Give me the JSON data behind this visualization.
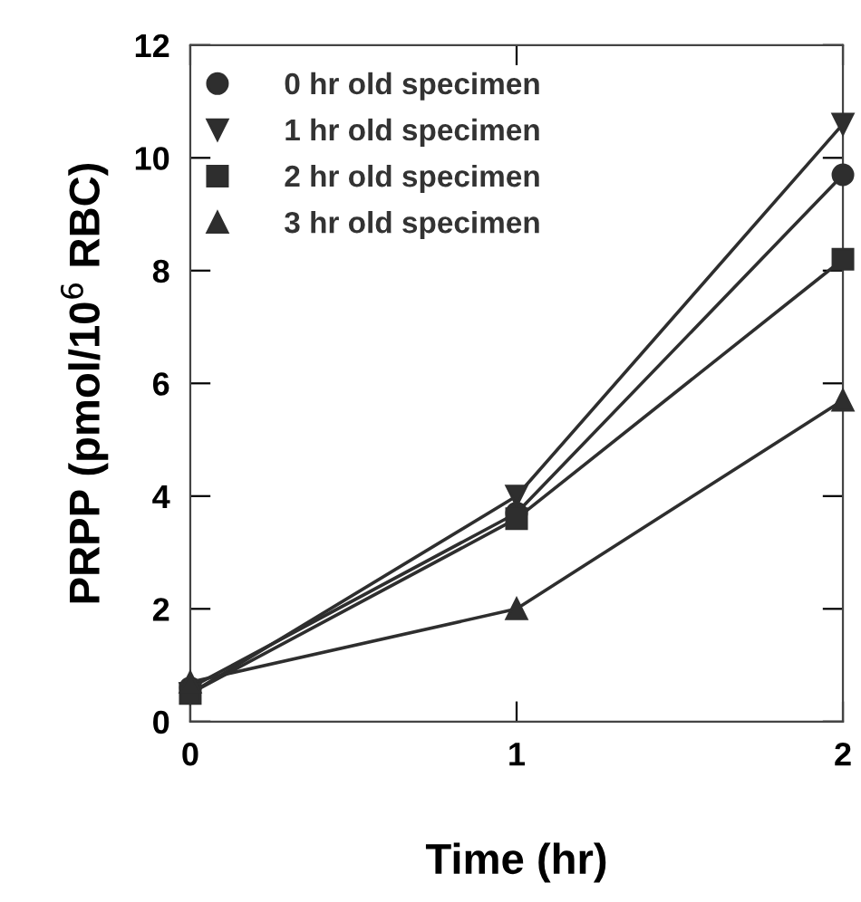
{
  "chart_data": {
    "type": "line",
    "xlabel": "Time (hr)",
    "ylabel": "PRPP (pmol/10$^{6}$ RBC)",
    "x": [
      0,
      1,
      2
    ],
    "xlim": [
      0,
      2
    ],
    "xticks": [
      0,
      1,
      2
    ],
    "ylim": [
      0,
      12
    ],
    "yticks": [
      0,
      2,
      4,
      6,
      8,
      10,
      12
    ],
    "grid": false,
    "legend": "top left",
    "series": [
      {
        "name": "0 hr old specimen",
        "color": "#2e2e2e",
        "marker": "circle",
        "values": [
          0.6,
          3.7,
          9.7
        ]
      },
      {
        "name": "1 hr old specimen",
        "color": "#2e2e2e",
        "marker": "triangle_down",
        "values": [
          0.5,
          4.0,
          10.6
        ]
      },
      {
        "name": "2 hr old specimen",
        "color": "#2e2e2e",
        "marker": "square",
        "values": [
          0.5,
          3.6,
          8.2
        ]
      },
      {
        "name": "3 hr old specimen",
        "color": "#2e2e2e",
        "marker": "triangle",
        "values": [
          0.7,
          2.0,
          5.7
        ]
      }
    ]
  }
}
